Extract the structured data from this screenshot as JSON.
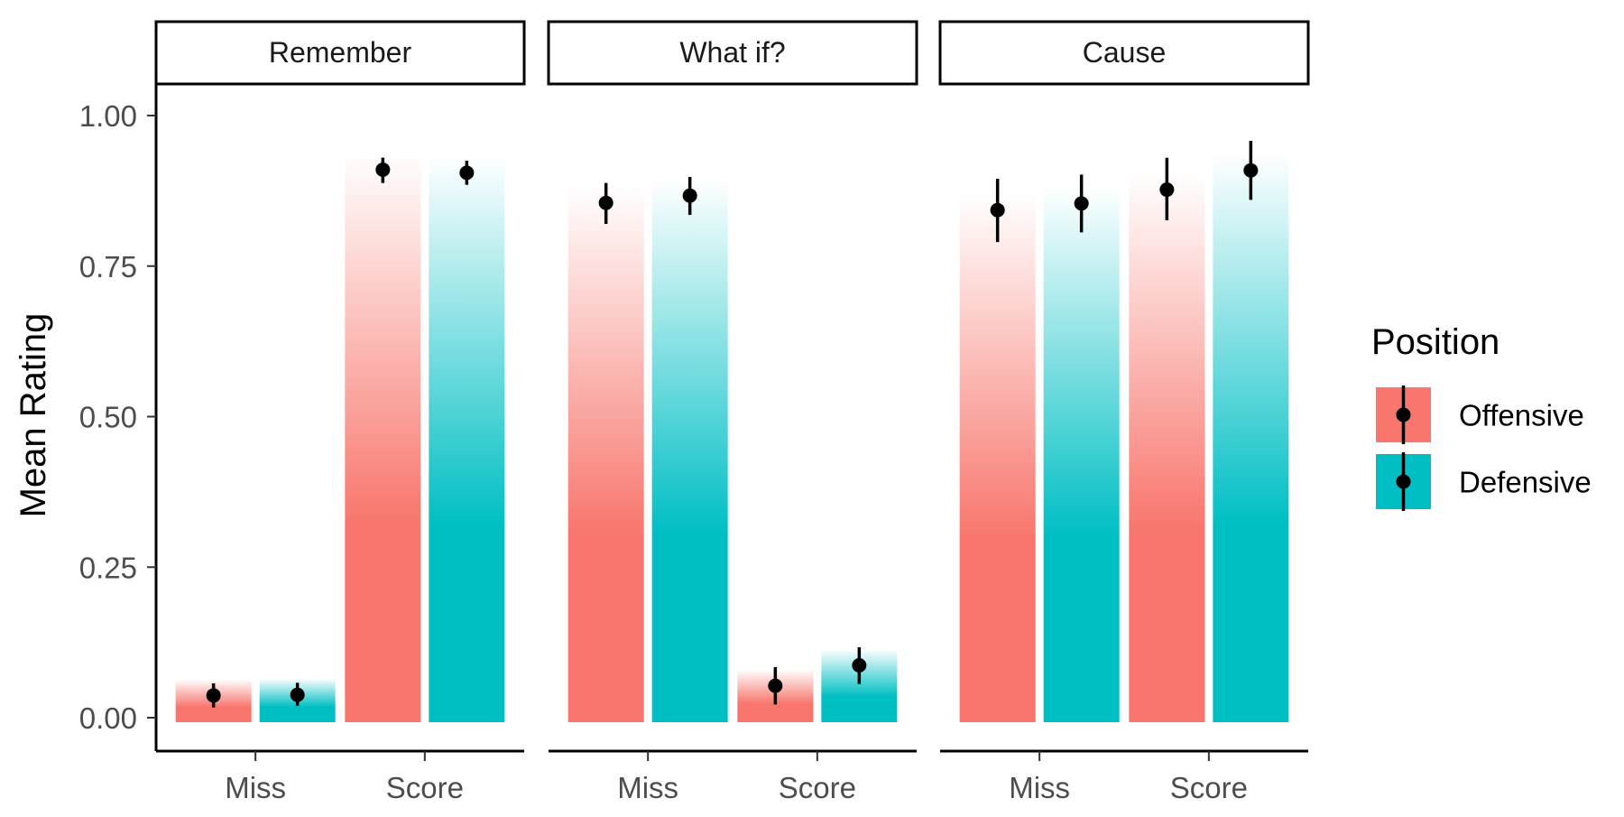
{
  "chart_data": {
    "type": "bar",
    "facets": [
      "Remember",
      "What if?",
      "Cause"
    ],
    "categories": [
      "Miss",
      "Score"
    ],
    "ylabel": "Mean Rating",
    "ylim": [
      0,
      1
    ],
    "yticks": [
      0,
      0.25,
      0.5,
      0.75,
      1.0
    ],
    "ytick_labels": [
      "0.00",
      "0.25",
      "0.50",
      "0.75",
      "1.00"
    ],
    "legend": {
      "title": "Position",
      "entries": [
        {
          "name": "Offensive",
          "color": "#F8766D"
        },
        {
          "name": "Defensive",
          "color": "#00BFC4"
        }
      ],
      "placement": "right"
    },
    "series": [
      {
        "name": "Offensive",
        "color": "#F8766D",
        "values": [
          [
            0.037,
            0.91
          ],
          [
            0.855,
            0.053
          ],
          [
            0.843,
            0.877
          ]
        ],
        "err_low": [
          [
            0.017,
            0.888
          ],
          [
            0.82,
            0.022
          ],
          [
            0.79,
            0.826
          ]
        ],
        "err_high": [
          [
            0.057,
            0.93
          ],
          [
            0.888,
            0.084
          ],
          [
            0.895,
            0.93
          ]
        ]
      },
      {
        "name": "Defensive",
        "color": "#00BFC4",
        "values": [
          [
            0.038,
            0.905
          ],
          [
            0.867,
            0.087
          ],
          [
            0.854,
            0.909
          ]
        ],
        "err_low": [
          [
            0.02,
            0.885
          ],
          [
            0.835,
            0.056
          ],
          [
            0.806,
            0.86
          ]
        ],
        "err_high": [
          [
            0.058,
            0.925
          ],
          [
            0.898,
            0.117
          ],
          [
            0.902,
            0.958
          ]
        ]
      }
    ]
  }
}
